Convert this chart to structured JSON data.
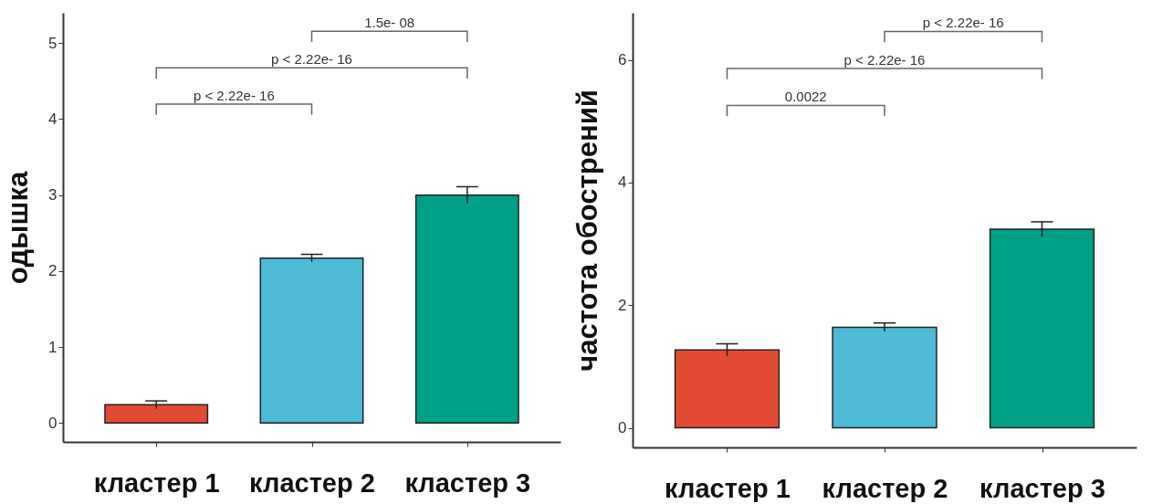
{
  "chart_data": [
    {
      "type": "bar",
      "ylabel": "одышка",
      "categories": [
        "кластер 1",
        "кластер 2",
        "кластер 3"
      ],
      "colors": [
        "#e34a33",
        "#4dbbd5",
        "#00a087"
      ],
      "values": [
        0.24,
        2.17,
        3.0
      ],
      "errors": [
        0.05,
        0.05,
        0.11
      ],
      "ylim": [
        -0.25,
        5.4
      ],
      "yticks": [
        0,
        1,
        2,
        3,
        4,
        5
      ],
      "grid": false,
      "annotations": [
        "p < 2.22e- 16",
        "p < 2.22e- 16",
        "1.5e- 08"
      ]
    },
    {
      "type": "bar",
      "ylabel": "частота обострений",
      "categories": [
        "кластер 1",
        "кластер 2",
        "кластер 3"
      ],
      "colors": [
        "#e34a33",
        "#4dbbd5",
        "#00a087"
      ],
      "values": [
        1.27,
        1.64,
        3.24
      ],
      "errors": [
        0.1,
        0.07,
        0.12
      ],
      "ylim": [
        -0.32,
        6.77
      ],
      "yticks": [
        0,
        2,
        4,
        6
      ],
      "grid": false,
      "annotations": [
        "0.0022",
        "p < 2.22e- 16",
        "p < 2.22e- 16"
      ]
    }
  ]
}
